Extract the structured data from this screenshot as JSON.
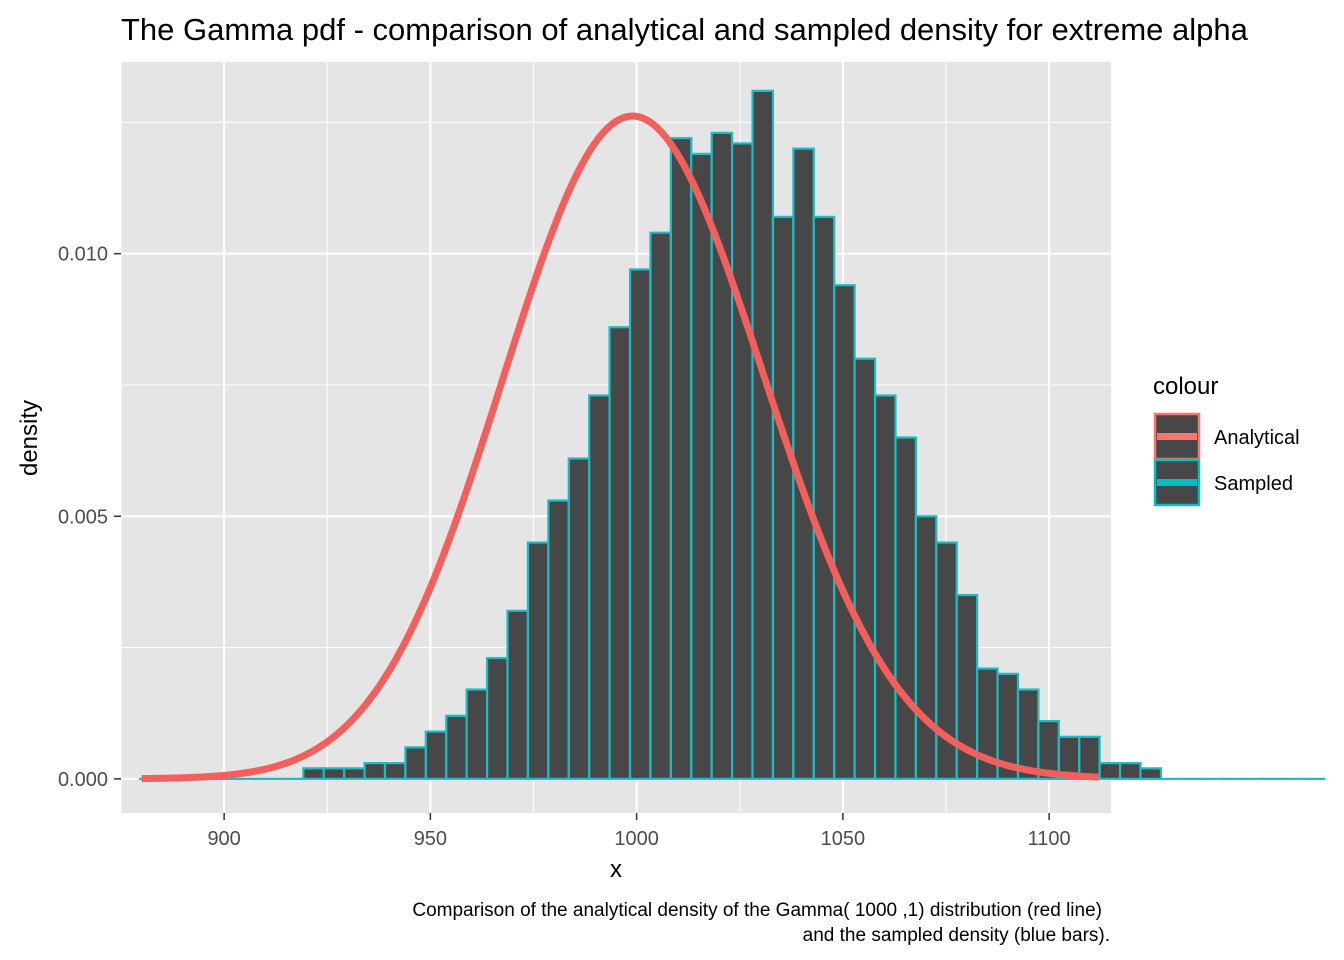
{
  "chart_data": {
    "type": "bar",
    "title": "The Gamma pdf - comparison of analytical and sampled density for extreme alpha",
    "xlabel": "x",
    "ylabel": "density",
    "caption_lines": [
      "Comparison of the analytical density of the Gamma( 1000 ,1) distribution (red line)",
      "and the sampled density (blue bars)."
    ],
    "xlim": [
      875,
      1115
    ],
    "ylim": [
      -0.00065,
      0.01365
    ],
    "x_ticks": [
      900,
      950,
      1000,
      1050,
      1100
    ],
    "x_tick_labels": [
      "900",
      "950",
      "1000",
      "1050",
      "1100"
    ],
    "y_ticks": [
      0.0,
      0.005,
      0.01
    ],
    "y_tick_labels": [
      "0.000",
      "0.005",
      "0.010"
    ],
    "grid": true,
    "legend": {
      "title": "colour",
      "position": "right",
      "entries": [
        {
          "label": "Analytical",
          "color": "#F8766D"
        },
        {
          "label": "Sampled",
          "color": "#00BFC4"
        }
      ]
    },
    "colors": {
      "panel_bg": "#E5E5E5",
      "grid": "#FFFFFF",
      "bar_fill": "#474747",
      "bar_outline": "#1ABDC4",
      "analytical_line": "#F25F5C"
    },
    "histogram": {
      "name": "Sampled",
      "bin_width": 4.95,
      "bin_start": 879.6,
      "densities": [
        0.0,
        0.0,
        0.0,
        0.0,
        0.0,
        0.0,
        0.0,
        0.0,
        0.0002,
        0.0002,
        0.0002,
        0.0003,
        0.0003,
        0.0006,
        0.0009,
        0.0012,
        0.0017,
        0.0023,
        0.0032,
        0.0045,
        0.0053,
        0.0061,
        0.0073,
        0.0086,
        0.0097,
        0.0104,
        0.0122,
        0.0119,
        0.0123,
        0.0121,
        0.0131,
        0.0107,
        0.012,
        0.0107,
        0.0094,
        0.008,
        0.0073,
        0.0065,
        0.005,
        0.0045,
        0.0035,
        0.0021,
        0.002,
        0.0017,
        0.0011,
        0.0008,
        0.0008,
        0.0003,
        0.0003,
        0.0002,
        0.0,
        0.0,
        0.0,
        0.0,
        0.0,
        0.0,
        0.0,
        0.0
      ]
    },
    "analytical": {
      "name": "Analytical",
      "distribution": "Gamma(1000, 1)",
      "x_range": [
        880,
        1112
      ],
      "shape": 1000,
      "rate": 1
    }
  }
}
